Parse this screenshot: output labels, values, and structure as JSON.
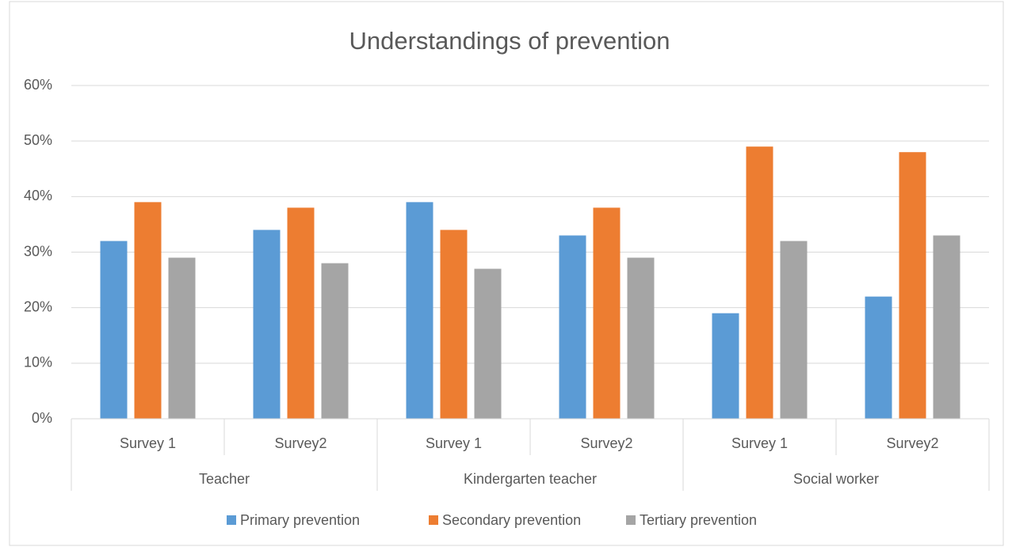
{
  "chart_data": {
    "type": "bar",
    "title": "Understandings of prevention",
    "categories": [
      "Survey 1",
      "Survey2",
      "Survey 1",
      "Survey2",
      "Survey 1",
      "Survey2"
    ],
    "groups": [
      "Teacher",
      "Kindergarten teacher",
      "Social worker"
    ],
    "series": [
      {
        "name": "Primary prevention",
        "color": "#5b9bd5",
        "values": [
          32,
          34,
          39,
          33,
          19,
          22
        ]
      },
      {
        "name": "Secondary prevention",
        "color": "#ed7d31",
        "values": [
          39,
          38,
          34,
          38,
          49,
          48
        ]
      },
      {
        "name": "Tertiary prevention",
        "color": "#a5a5a5",
        "values": [
          29,
          28,
          27,
          29,
          32,
          33
        ]
      }
    ],
    "ylim": [
      0,
      60
    ],
    "yticks": [
      {
        "value": 0,
        "label": "0%"
      },
      {
        "value": 10,
        "label": "10%"
      },
      {
        "value": 20,
        "label": "20%"
      },
      {
        "value": 30,
        "label": "30%"
      },
      {
        "value": 40,
        "label": "40%"
      },
      {
        "value": 50,
        "label": "50%"
      },
      {
        "value": 60,
        "label": "60%"
      }
    ],
    "grid": true,
    "legend": "bottom"
  }
}
